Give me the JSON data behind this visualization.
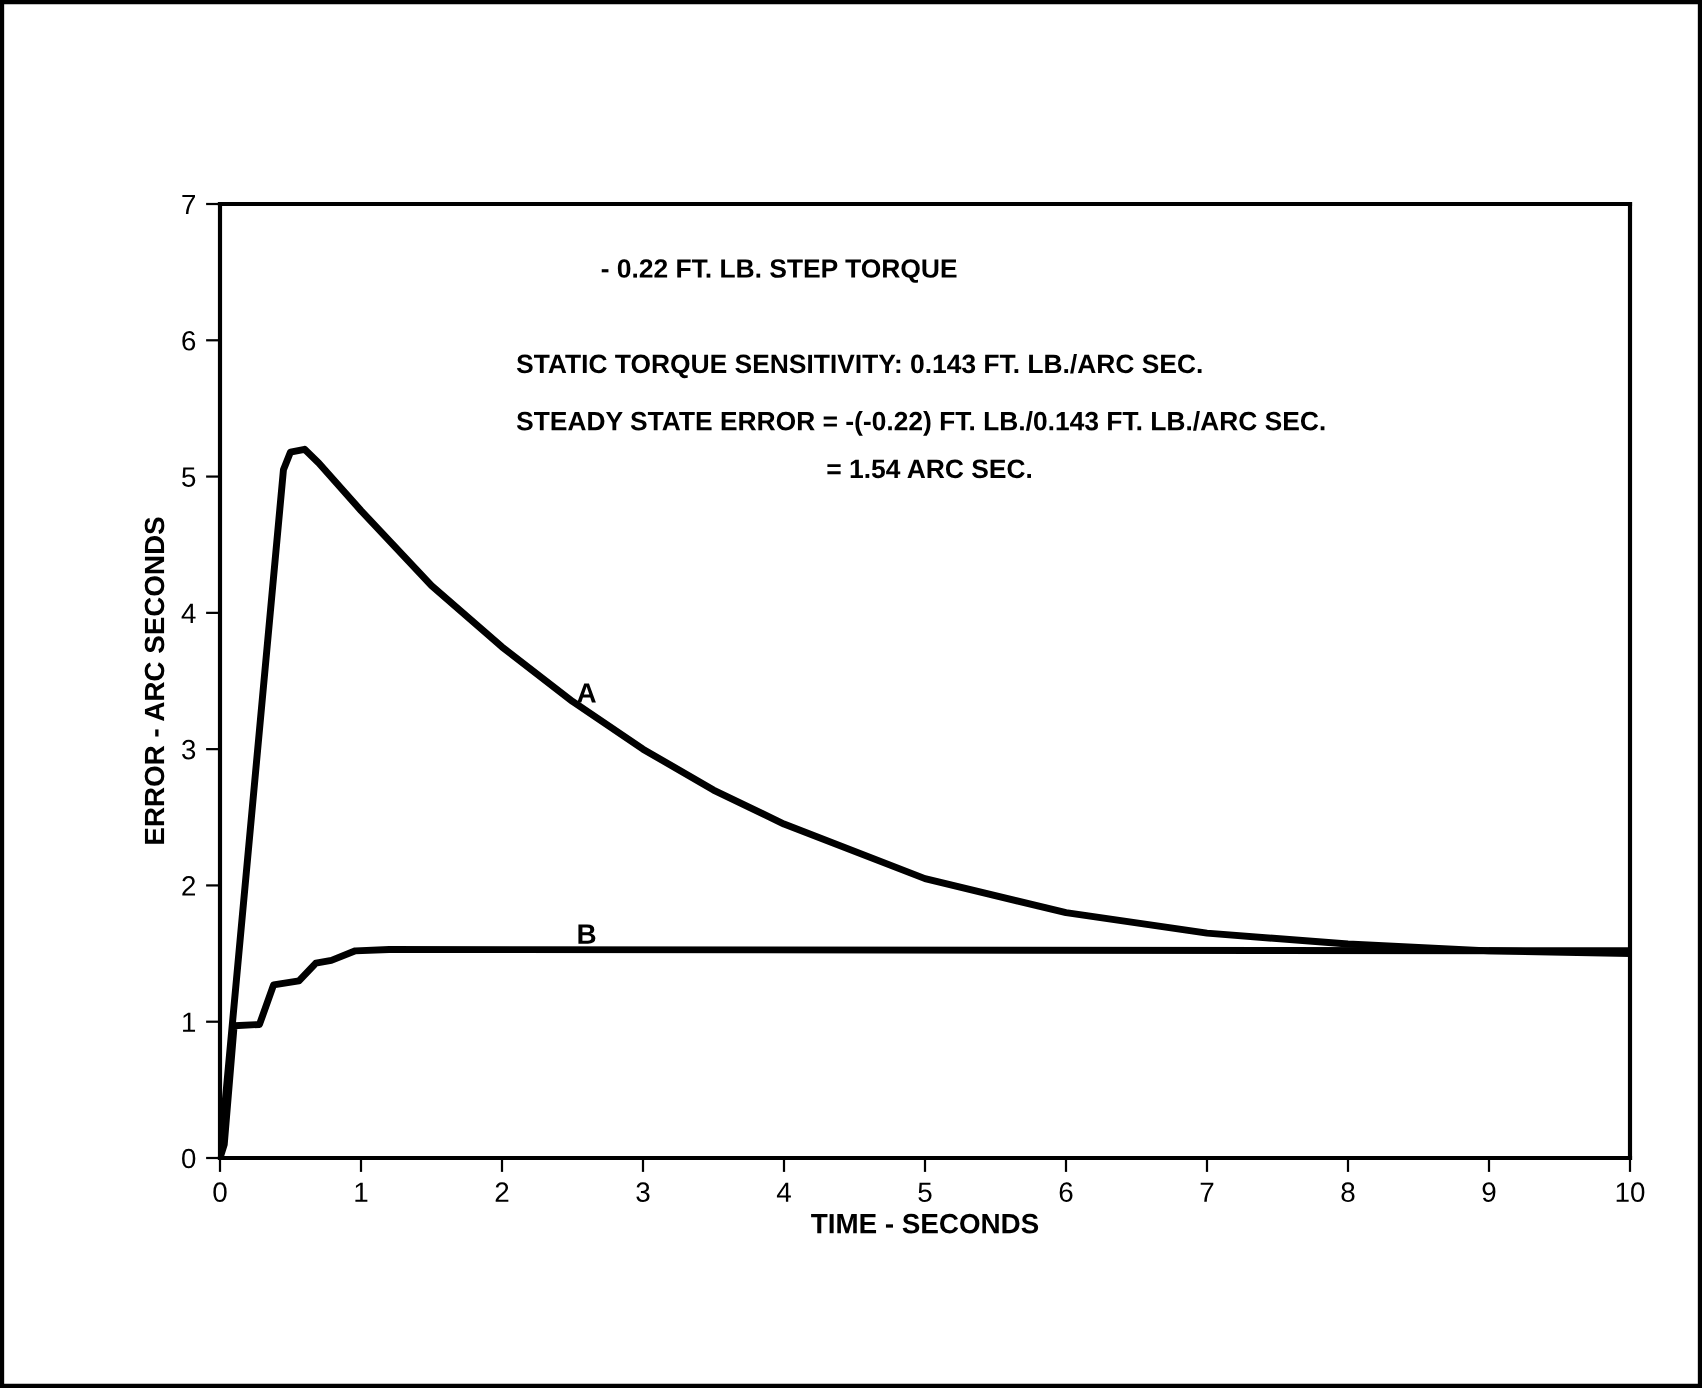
{
  "chart_data": {
    "type": "line",
    "xlabel": "TIME - SECONDS",
    "ylabel": "ERROR - ARC SECONDS",
    "xlim": [
      0,
      10
    ],
    "ylim": [
      0,
      7
    ],
    "xticks": [
      0,
      1,
      2,
      3,
      4,
      5,
      6,
      7,
      8,
      9,
      10
    ],
    "yticks": [
      0,
      1,
      2,
      3,
      4,
      5,
      6,
      7
    ],
    "grid": false,
    "legend": false,
    "series": [
      {
        "color": "#000000",
        "x": [
          0,
          0.45,
          0.5,
          0.6,
          0.7,
          1,
          1.5,
          2,
          2.5,
          3,
          3.5,
          4,
          5,
          6,
          7,
          8,
          9,
          10
        ],
        "values": [
          0,
          5.05,
          5.18,
          5.2,
          5.1,
          4.75,
          4.2,
          3.75,
          3.35,
          3.0,
          2.7,
          2.45,
          2.05,
          1.8,
          1.65,
          1.57,
          1.52,
          1.5
        ]
      },
      {
        "color": "#000000",
        "x": [
          0,
          0.03,
          0.1,
          0.28,
          0.38,
          0.56,
          0.68,
          0.79,
          0.96,
          1.2,
          10
        ],
        "values": [
          0,
          0.1,
          0.97,
          0.98,
          1.27,
          1.3,
          1.43,
          1.45,
          1.52,
          1.53,
          1.52
        ]
      }
    ],
    "annotations": [
      {
        "text": "A",
        "x": 2.6,
        "y": 3.3
      },
      {
        "text": "B",
        "x": 2.6,
        "y": 1.53
      },
      "- 0.22 FT. LB. STEP TORQUE",
      "STATIC TORQUE SENSITIVITY: 0.143 FT. LB./ARC SEC.",
      "STEADY STATE ERROR = -(-0.22) FT. LB./0.143 FT. LB./ARC SEC.",
      "= 1.54 ARC SEC."
    ]
  }
}
